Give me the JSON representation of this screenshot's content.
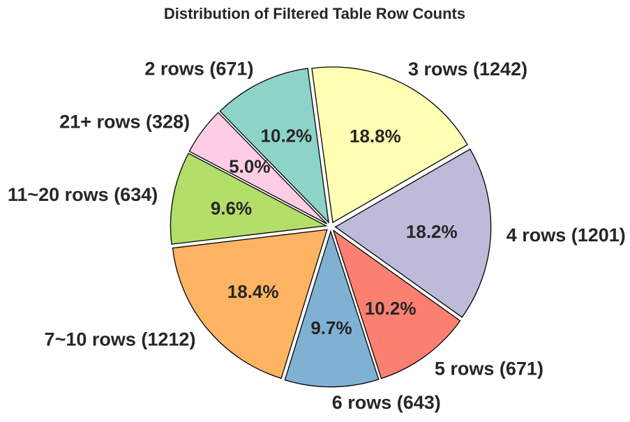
{
  "chart_data": {
    "type": "pie",
    "title": "Distribution of Filtered Table Row Counts",
    "slices": [
      {
        "label": "3 rows (1242)",
        "value": 1242,
        "percent_label": "18.8%",
        "color": "#ffffb3"
      },
      {
        "label": "2 rows (671)",
        "value": 671,
        "percent_label": "10.2%",
        "color": "#8dd3c7"
      },
      {
        "label": "21+ rows (328)",
        "value": 328,
        "percent_label": "5.0%",
        "color": "#fccde5"
      },
      {
        "label": "11~20 rows (634)",
        "value": 634,
        "percent_label": "9.6%",
        "color": "#b3de69"
      },
      {
        "label": "7~10 rows (1212)",
        "value": 1212,
        "percent_label": "18.4%",
        "color": "#fdb462"
      },
      {
        "label": "6 rows (643)",
        "value": 643,
        "percent_label": "9.7%",
        "color": "#80b1d3"
      },
      {
        "label": "5 rows (671)",
        "value": 671,
        "percent_label": "10.2%",
        "color": "#fb8072"
      },
      {
        "label": "4 rows (1201)",
        "value": 1201,
        "percent_label": "18.2%",
        "color": "#bebada"
      }
    ],
    "start_angle_deg": 30,
    "direction": "counterclockwise",
    "exploded": true,
    "legend": "none"
  }
}
